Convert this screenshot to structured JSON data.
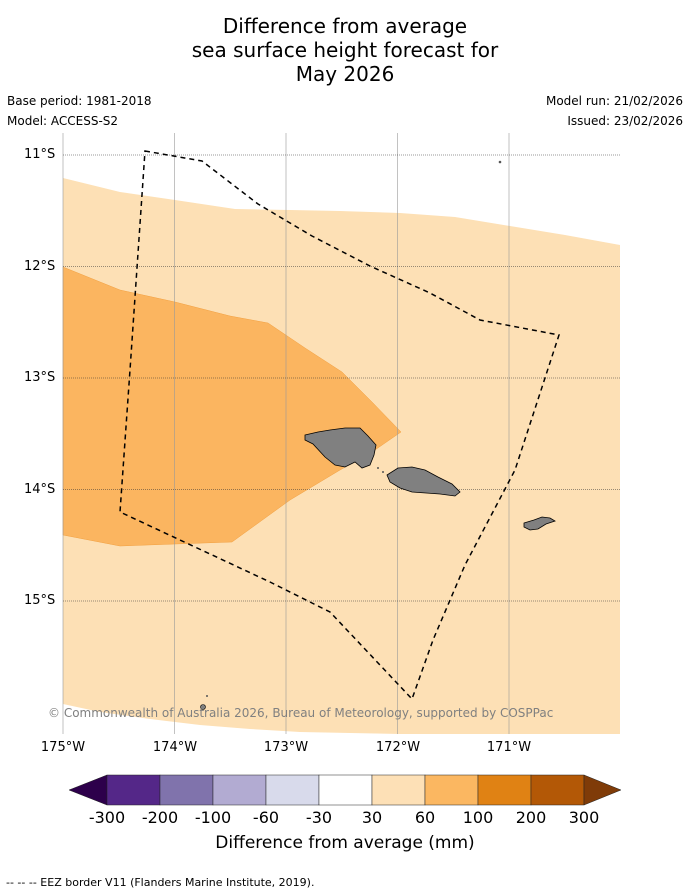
{
  "title": {
    "line1": "Difference from average",
    "line2": "sea surface height forecast for",
    "line3": "May 2026"
  },
  "meta_left": {
    "base_period": "Base period: 1981-2018",
    "model": "Model: ACCESS-S2"
  },
  "meta_right": {
    "model_run": "Model run: 21/02/2026",
    "issued": "Issued: 23/02/2026"
  },
  "map": {
    "lon_range": [
      -175,
      -170
    ],
    "lat_range": [
      -16.2,
      -10.8
    ],
    "lon_ticks": [
      {
        "value": -175,
        "label": "175°W"
      },
      {
        "value": -174,
        "label": "174°W"
      },
      {
        "value": -173,
        "label": "173°W"
      },
      {
        "value": -172,
        "label": "172°W"
      },
      {
        "value": -171,
        "label": "171°W"
      }
    ],
    "lat_ticks": [
      {
        "value": -11,
        "label": "11°S"
      },
      {
        "value": -12,
        "label": "12°S"
      },
      {
        "value": -13,
        "label": "13°S"
      },
      {
        "value": -14,
        "label": "14°S"
      },
      {
        "value": -15,
        "label": "15°S"
      }
    ],
    "background_color": "#fde0b5",
    "outer_band_color": "#ffffff",
    "mid_band_color": "#fbb560",
    "land_color": "#808080",
    "eez_color": "#000000",
    "copyright": "© Commonwealth of Australia 2026, Bureau of Meteorology, supported by COSPPac"
  },
  "colorbar": {
    "labels": [
      "-300",
      "-200",
      "-100",
      "-60",
      "-30",
      "30",
      "60",
      "100",
      "200",
      "300"
    ],
    "colors": [
      "#2d004b",
      "#542788",
      "#8073ac",
      "#b2abd2",
      "#d8daeb",
      "#ffffff",
      "#fde0b6",
      "#fbb761",
      "#e08214",
      "#b35806",
      "#7f3b08"
    ],
    "title": "Difference from average (mm)"
  },
  "footnote": "--  --  -- EEZ border V11 (Flanders Marine Institute, 2019)."
}
